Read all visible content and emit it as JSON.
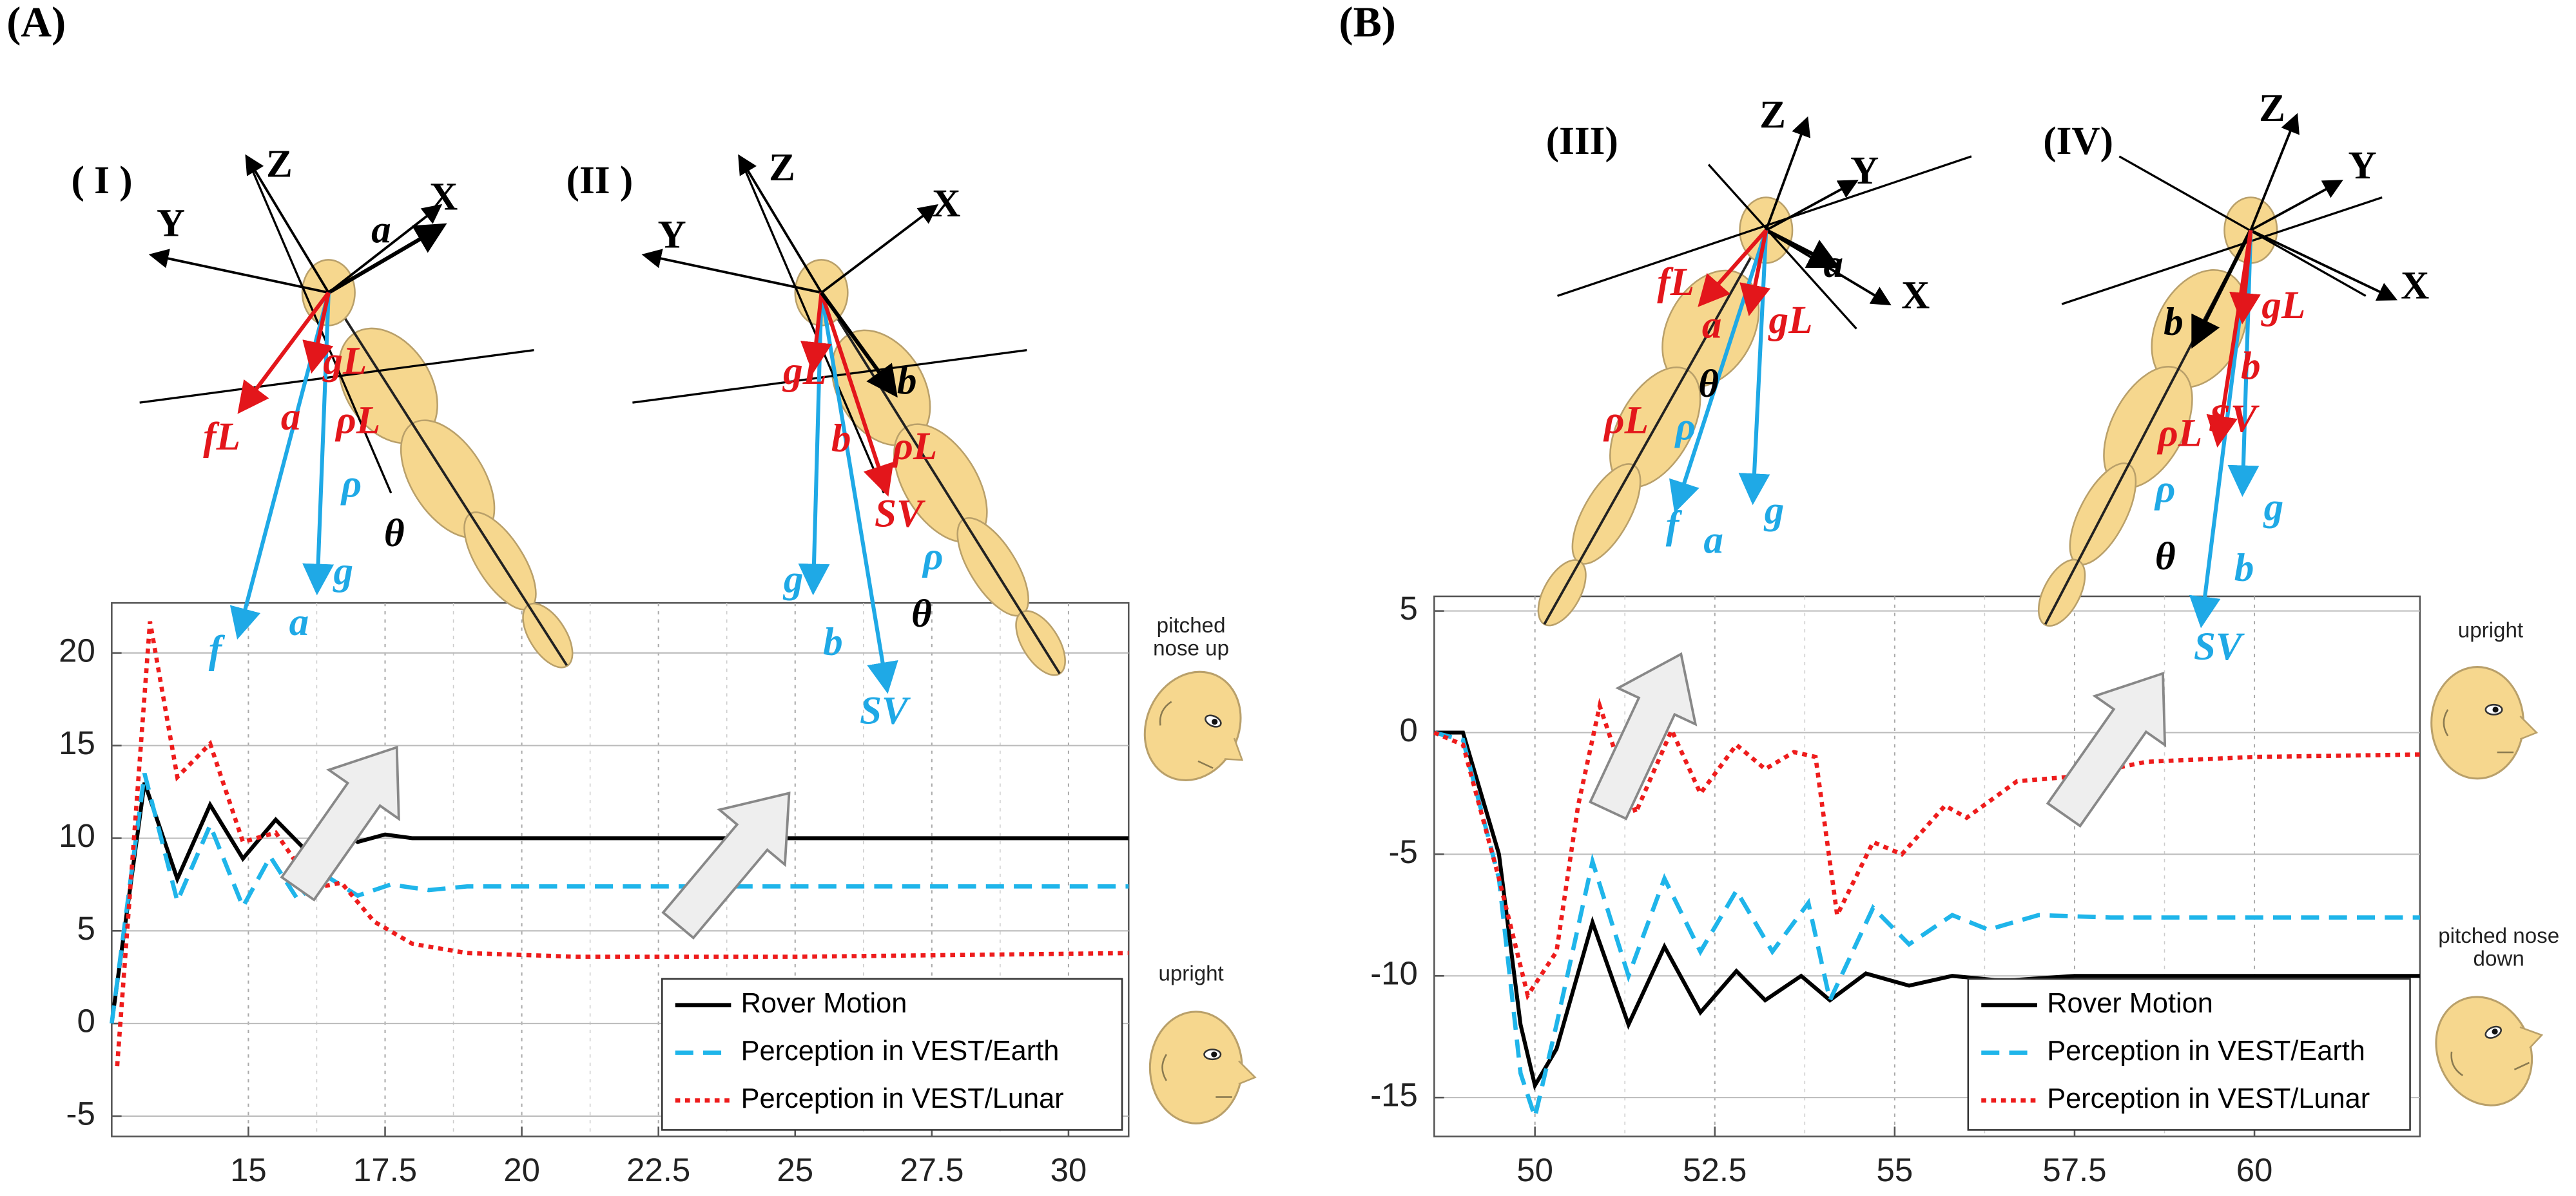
{
  "chart_data": [
    {
      "type": "line",
      "panel_label": "(A)",
      "xlim": [
        12.5,
        31.1
      ],
      "ylim": [
        -6.1,
        22.7
      ],
      "xticks": [
        15,
        17.5,
        20,
        22.5,
        25,
        27.5,
        30
      ],
      "yticks": [
        -5,
        0,
        5,
        10,
        15,
        20
      ],
      "grid": true,
      "legend": "lower right",
      "series": [
        {
          "name": "Rover Motion",
          "color": "#000000",
          "linestyle": "solid",
          "x": [
            12.5,
            13.1,
            13.7,
            14.3,
            14.9,
            15.5,
            16,
            16.5,
            17,
            17.5,
            18,
            31.1
          ],
          "values": [
            0,
            13,
            7.8,
            11.8,
            8.9,
            11,
            9.5,
            10.5,
            9.8,
            10.2,
            10,
            10
          ]
        },
        {
          "name": "Perception in VEST/Earth",
          "color": "#1fb5ea",
          "linestyle": "dashed",
          "x": [
            12.5,
            13.1,
            13.7,
            14.3,
            14.9,
            15.4,
            15.9,
            16.4,
            17,
            17.6,
            18.3,
            19,
            31.1
          ],
          "values": [
            0,
            13.5,
            6.6,
            10.7,
            6.3,
            9,
            6.7,
            8,
            6.9,
            7.5,
            7.2,
            7.4,
            7.4
          ]
        },
        {
          "name": "Perception in VEST/Lunar",
          "color": "#ee1c1c",
          "linestyle": "dotted",
          "x": [
            12.6,
            13.2,
            13.7,
            14.3,
            14.9,
            15.5,
            16.2,
            16.7,
            17.3,
            18,
            19,
            21,
            25,
            31.1
          ],
          "values": [
            -2.3,
            21.7,
            13.3,
            15.1,
            9.8,
            10.3,
            7.3,
            7.6,
            5.5,
            4.3,
            3.8,
            3.6,
            3.6,
            3.8
          ]
        }
      ],
      "annotations": [
        "pitched nose up",
        "upright"
      ]
    },
    {
      "type": "line",
      "panel_label": "(B)",
      "xlim": [
        48.6,
        62.3
      ],
      "ylim": [
        -16.6,
        5.6
      ],
      "xticks": [
        50,
        52.5,
        55,
        57.5,
        60
      ],
      "yticks": [
        -15,
        -10,
        -5,
        0,
        5
      ],
      "grid": true,
      "legend": "lower right",
      "series": [
        {
          "name": "Rover Motion",
          "color": "#000000",
          "linestyle": "solid",
          "x": [
            48.6,
            49,
            49.5,
            49.8,
            50,
            50.3,
            50.8,
            51.3,
            51.8,
            52.3,
            52.8,
            53.2,
            53.7,
            54.1,
            54.6,
            55.2,
            55.8,
            56.5,
            57.5,
            62.3
          ],
          "values": [
            0,
            0,
            -5,
            -12,
            -14.5,
            -13,
            -7.8,
            -12,
            -8.8,
            -11.5,
            -9.8,
            -11,
            -10,
            -11,
            -9.9,
            -10.4,
            -10,
            -10.2,
            -10,
            -10
          ]
        },
        {
          "name": "Perception in VEST/Earth",
          "color": "#1fb5ea",
          "linestyle": "dashed",
          "x": [
            48.6,
            49,
            49.5,
            49.8,
            50,
            50.3,
            50.8,
            51.3,
            51.8,
            52.3,
            52.8,
            53.3,
            53.8,
            54.1,
            54.7,
            55.2,
            55.8,
            56.3,
            57,
            58,
            62.3
          ],
          "values": [
            0,
            -0.3,
            -6,
            -14,
            -15.8,
            -12,
            -5.3,
            -10,
            -6,
            -9,
            -6.5,
            -9,
            -7,
            -11,
            -7.2,
            -8.7,
            -7.5,
            -8.1,
            -7.5,
            -7.6,
            -7.6
          ]
        },
        {
          "name": "Perception in VEST/Lunar",
          "color": "#ee1c1c",
          "linestyle": "dotted",
          "x": [
            48.6,
            49,
            49.5,
            49.9,
            50.3,
            50.6,
            50.9,
            51.4,
            51.9,
            52.3,
            52.8,
            53.2,
            53.6,
            53.9,
            54.2,
            54.7,
            55.1,
            55.7,
            56,
            56.7,
            57.5,
            58.5,
            60,
            62.3
          ],
          "values": [
            0,
            -0.5,
            -6,
            -10.8,
            -9,
            -3,
            1.1,
            -3.3,
            0.1,
            -2.5,
            -0.5,
            -1.5,
            -0.8,
            -1,
            -7.5,
            -4.5,
            -5,
            -3,
            -3.5,
            -2,
            -1.8,
            -1.2,
            -1,
            -0.9
          ]
        }
      ],
      "annotations": [
        "upright",
        "pitched nose down"
      ]
    }
  ],
  "diagrams": [
    {
      "labels": [
        "( I )",
        "Z",
        "X",
        "Y",
        "a",
        "gL",
        "fL",
        "a",
        "ρL",
        "ρ",
        "θ",
        "g",
        "f",
        "a"
      ]
    },
    {
      "labels": [
        "(II )",
        "Z",
        "X",
        "Y",
        "gL",
        "b",
        "b",
        "ρL",
        "SV",
        "ρ",
        "g",
        "θ",
        "b",
        "SV"
      ]
    },
    {
      "labels": [
        "(III)",
        "Z",
        "Y",
        "X",
        "a",
        "fL",
        "gL",
        "a",
        "θ",
        "ρL",
        "ρ",
        "f",
        "a",
        "g"
      ]
    },
    {
      "labels": [
        "(IV)",
        "Z",
        "Y",
        "X",
        "b",
        "gL",
        "b",
        "ρL",
        "SV",
        "ρ",
        "g",
        "θ",
        "b",
        "SV"
      ]
    }
  ]
}
